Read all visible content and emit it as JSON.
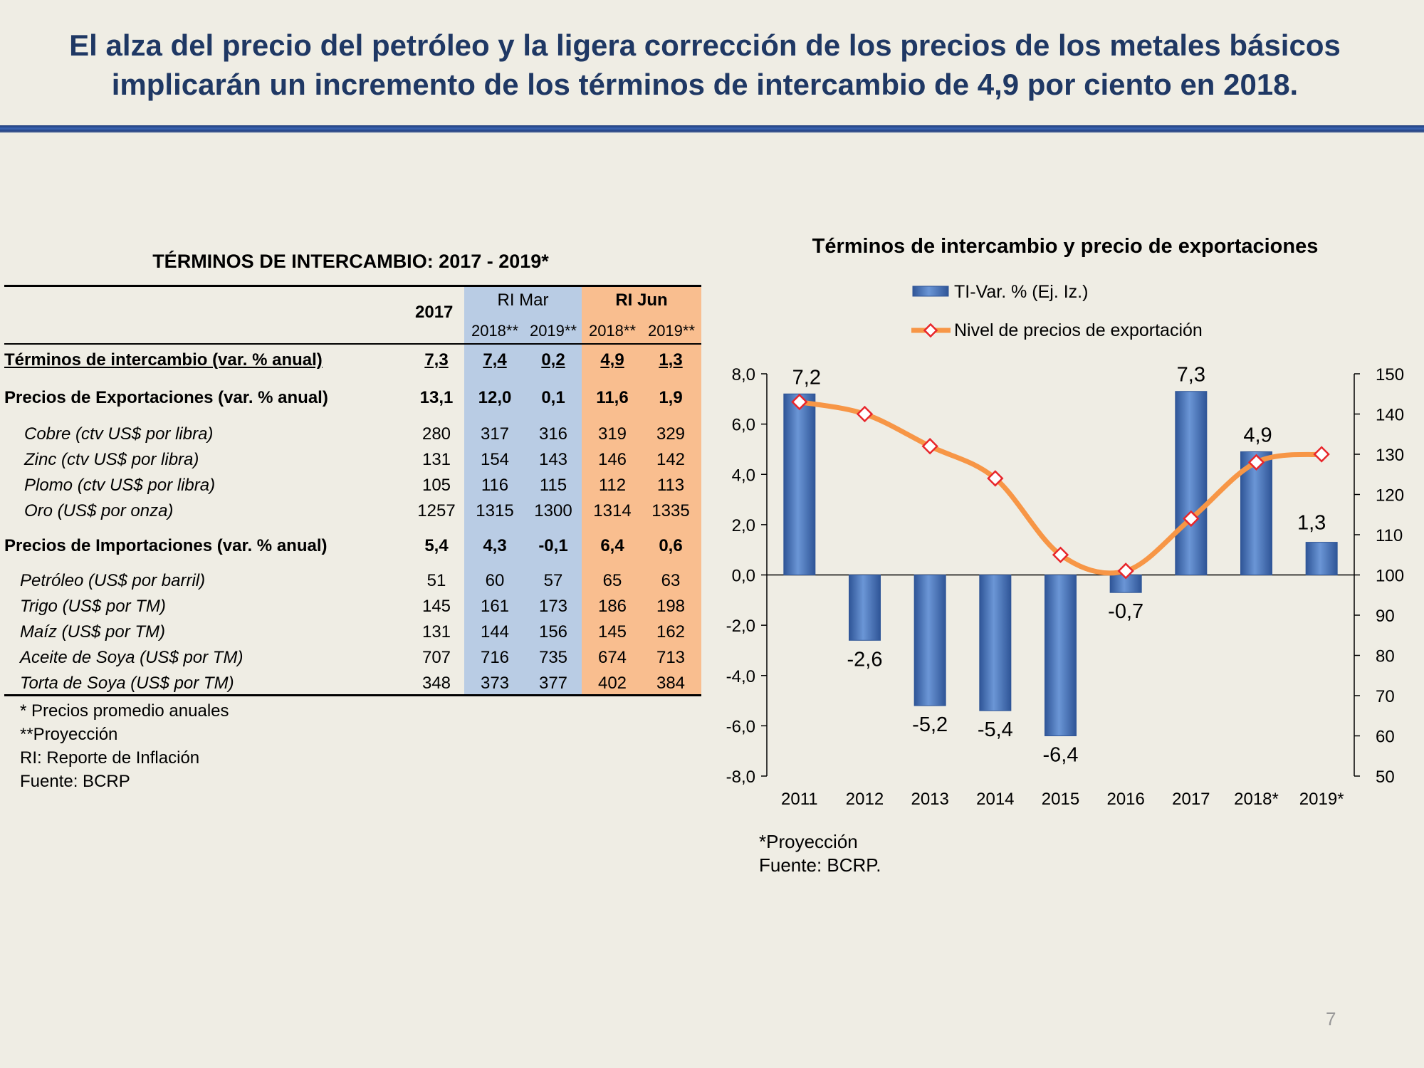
{
  "header": {
    "title_line1": "El alza del precio del petróleo y la ligera corrección de los precios de los metales básicos",
    "title_line2": "implicarán un incremento de los términos de intercambio de 4,9 por ciento en 2018."
  },
  "table": {
    "title": "TÉRMINOS DE INTERCAMBIO: 2017 - 2019*",
    "col_2017": "2017",
    "group_mar": "RI Mar",
    "group_jun": "RI Jun",
    "sub": [
      "2018**",
      "2019**",
      "2018**",
      "2019**"
    ],
    "rows": [
      {
        "label": "Términos de intercambio (var. % anual)",
        "vals": [
          "7,3",
          "7,4",
          "0,2",
          "4,9",
          "1,3"
        ]
      },
      {
        "label": "Precios de Exportaciones (var. % anual)",
        "vals": [
          "13,1",
          "12,0",
          "0,1",
          "11,6",
          "1,9"
        ]
      },
      {
        "label": "Cobre (ctv US$ por libra)",
        "vals": [
          "280",
          "317",
          "316",
          "319",
          "329"
        ]
      },
      {
        "label": "Zinc (ctv US$ por libra)",
        "vals": [
          "131",
          "154",
          "143",
          "146",
          "142"
        ]
      },
      {
        "label": "Plomo (ctv US$ por libra)",
        "vals": [
          "105",
          "116",
          "115",
          "112",
          "113"
        ]
      },
      {
        "label": "Oro (US$ por onza)",
        "vals": [
          "1257",
          "1315",
          "1300",
          "1314",
          "1335"
        ]
      },
      {
        "label": "Precios de Importaciones (var. % anual)",
        "vals": [
          "5,4",
          "4,3",
          "-0,1",
          "6,4",
          "0,6"
        ]
      },
      {
        "label": "Petróleo (US$ por barril)",
        "vals": [
          "51",
          "60",
          "57",
          "65",
          "63"
        ]
      },
      {
        "label": "Trigo (US$ por TM)",
        "vals": [
          "145",
          "161",
          "173",
          "186",
          "198"
        ]
      },
      {
        "label": "Maíz (US$ por TM)",
        "vals": [
          "131",
          "144",
          "156",
          "145",
          "162"
        ]
      },
      {
        "label": "Aceite de Soya (US$ por TM)",
        "vals": [
          "707",
          "716",
          "735",
          "674",
          "713"
        ]
      },
      {
        "label": "Torta de Soya (US$ por TM)",
        "vals": [
          "348",
          "373",
          "377",
          "402",
          "384"
        ]
      }
    ],
    "notes": [
      "* Precios promedio anuales",
      "**Proyección",
      "RI: Reporte de Inflación",
      "Fuente: BCRP"
    ]
  },
  "chart_data": {
    "type": "bar",
    "title": "Términos de intercambio y precio de exportaciones",
    "categories": [
      "2011",
      "2012",
      "2013",
      "2014",
      "2015",
      "2016",
      "2017",
      "2018*",
      "2019*"
    ],
    "series": [
      {
        "name": "TI-Var. %  (Ej. Iz.)",
        "type": "bar",
        "axis": "left",
        "values": [
          7.2,
          -2.6,
          -5.2,
          -5.4,
          -6.4,
          -0.7,
          7.3,
          4.9,
          1.3
        ]
      },
      {
        "name": "Nivel de precios de exportación",
        "type": "line",
        "axis": "right",
        "values": [
          143,
          140,
          132,
          124,
          105,
          101,
          114,
          128,
          130
        ]
      }
    ],
    "bar_labels": [
      "7,2",
      "-2,6",
      "-5,2",
      "-5,4",
      "-6,4",
      "-0,7",
      "7,3",
      "4,9",
      "1,3"
    ],
    "y_left": {
      "min": -8,
      "max": 8,
      "step": 2,
      "tick_labels": [
        "8,0",
        "6,0",
        "4,0",
        "2,0",
        "0,0",
        "-2,0",
        "-4,0",
        "-6,0",
        "-8,0"
      ]
    },
    "y_right": {
      "min": 50,
      "max": 150,
      "step": 10,
      "tick_labels": [
        "150",
        "140",
        "130",
        "120",
        "110",
        "100",
        "90",
        "80",
        "70",
        "60",
        "50"
      ]
    },
    "colors": {
      "bar": "#4f7fc8",
      "line": "#f79646",
      "marker": "#e8262b"
    }
  },
  "footer": {
    "source_line1": "*Proyección",
    "source_line2": "Fuente: BCRP.",
    "page": "7"
  }
}
